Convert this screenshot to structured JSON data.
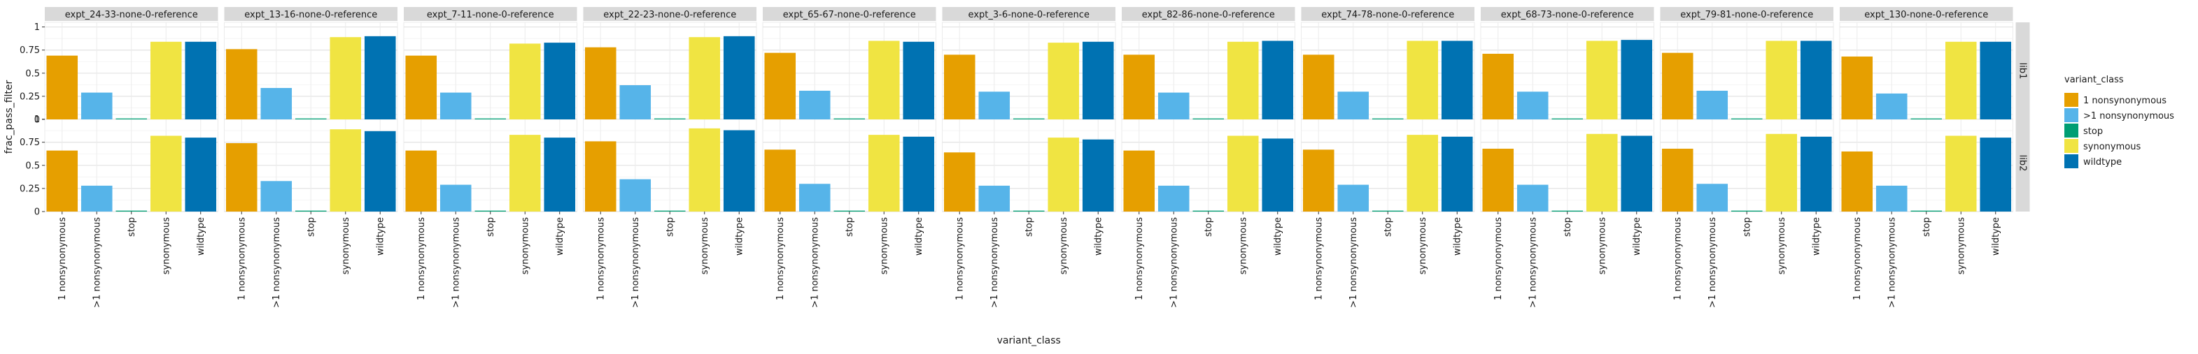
{
  "chart_data": {
    "type": "bar",
    "facets": {
      "columns": [
        "expt_24-33-none-0-reference",
        "expt_13-16-none-0-reference",
        "expt_7-11-none-0-reference",
        "expt_22-23-none-0-reference",
        "expt_65-67-none-0-reference",
        "expt_3-6-none-0-reference",
        "expt_82-86-none-0-reference",
        "expt_74-78-none-0-reference",
        "expt_68-73-none-0-reference",
        "expt_79-81-none-0-reference",
        "expt_130-none-0-reference"
      ],
      "rows": [
        "lib1",
        "lib2"
      ]
    },
    "categories": [
      "1 nonsynonymous",
      ">1 nonsynonymous",
      "stop",
      "synonymous",
      "wildtype"
    ],
    "xlabel": "variant_class",
    "ylabel": "frac_pass_filter",
    "ylim": [
      0,
      1.05
    ],
    "yticks": [
      0,
      0.25,
      0.5,
      0.75,
      1
    ],
    "ytick_labels": [
      "0",
      "0.25",
      "0.5",
      "0.75",
      "1"
    ],
    "grid": true,
    "legend": {
      "title": "variant_class",
      "position": "right",
      "entries": [
        "1 nonsynonymous",
        ">1 nonsynonymous",
        "stop",
        "synonymous",
        "wildtype"
      ]
    },
    "colors": {
      "1 nonsynonymous": "#E69F00",
      ">1 nonsynonymous": "#56B4E9",
      "stop": "#009E73",
      "synonymous": "#F0E442",
      "wildtype": "#0072B2"
    },
    "panels": [
      {
        "column": "expt_24-33-none-0-reference",
        "row": "lib1",
        "values": [
          0.69,
          0.29,
          0.01,
          0.84,
          0.84
        ]
      },
      {
        "column": "expt_13-16-none-0-reference",
        "row": "lib1",
        "values": [
          0.76,
          0.34,
          0.01,
          0.89,
          0.9
        ]
      },
      {
        "column": "expt_7-11-none-0-reference",
        "row": "lib1",
        "values": [
          0.69,
          0.29,
          0.01,
          0.82,
          0.83
        ]
      },
      {
        "column": "expt_22-23-none-0-reference",
        "row": "lib1",
        "values": [
          0.78,
          0.37,
          0.01,
          0.89,
          0.9
        ]
      },
      {
        "column": "expt_65-67-none-0-reference",
        "row": "lib1",
        "values": [
          0.72,
          0.31,
          0.01,
          0.85,
          0.84
        ]
      },
      {
        "column": "expt_3-6-none-0-reference",
        "row": "lib1",
        "values": [
          0.7,
          0.3,
          0.01,
          0.83,
          0.84
        ]
      },
      {
        "column": "expt_82-86-none-0-reference",
        "row": "lib1",
        "values": [
          0.7,
          0.29,
          0.01,
          0.84,
          0.85
        ]
      },
      {
        "column": "expt_74-78-none-0-reference",
        "row": "lib1",
        "values": [
          0.7,
          0.3,
          0.01,
          0.85,
          0.85
        ]
      },
      {
        "column": "expt_68-73-none-0-reference",
        "row": "lib1",
        "values": [
          0.71,
          0.3,
          0.01,
          0.85,
          0.86
        ]
      },
      {
        "column": "expt_79-81-none-0-reference",
        "row": "lib1",
        "values": [
          0.72,
          0.31,
          0.01,
          0.85,
          0.85
        ]
      },
      {
        "column": "expt_130-none-0-reference",
        "row": "lib1",
        "values": [
          0.68,
          0.28,
          0.01,
          0.84,
          0.84
        ]
      },
      {
        "column": "expt_24-33-none-0-reference",
        "row": "lib2",
        "values": [
          0.66,
          0.28,
          0.01,
          0.82,
          0.8
        ]
      },
      {
        "column": "expt_13-16-none-0-reference",
        "row": "lib2",
        "values": [
          0.74,
          0.33,
          0.01,
          0.89,
          0.87
        ]
      },
      {
        "column": "expt_7-11-none-0-reference",
        "row": "lib2",
        "values": [
          0.66,
          0.29,
          0.01,
          0.83,
          0.8
        ]
      },
      {
        "column": "expt_22-23-none-0-reference",
        "row": "lib2",
        "values": [
          0.76,
          0.35,
          0.01,
          0.9,
          0.88
        ]
      },
      {
        "column": "expt_65-67-none-0-reference",
        "row": "lib2",
        "values": [
          0.67,
          0.3,
          0.01,
          0.83,
          0.81
        ]
      },
      {
        "column": "expt_3-6-none-0-reference",
        "row": "lib2",
        "values": [
          0.64,
          0.28,
          0.01,
          0.8,
          0.78
        ]
      },
      {
        "column": "expt_82-86-none-0-reference",
        "row": "lib2",
        "values": [
          0.66,
          0.28,
          0.01,
          0.82,
          0.79
        ]
      },
      {
        "column": "expt_74-78-none-0-reference",
        "row": "lib2",
        "values": [
          0.67,
          0.29,
          0.01,
          0.83,
          0.81
        ]
      },
      {
        "column": "expt_68-73-none-0-reference",
        "row": "lib2",
        "values": [
          0.68,
          0.29,
          0.01,
          0.84,
          0.82
        ]
      },
      {
        "column": "expt_79-81-none-0-reference",
        "row": "lib2",
        "values": [
          0.68,
          0.3,
          0.01,
          0.84,
          0.81
        ]
      },
      {
        "column": "expt_130-none-0-reference",
        "row": "lib2",
        "values": [
          0.65,
          0.28,
          0.01,
          0.82,
          0.8
        ]
      }
    ]
  }
}
